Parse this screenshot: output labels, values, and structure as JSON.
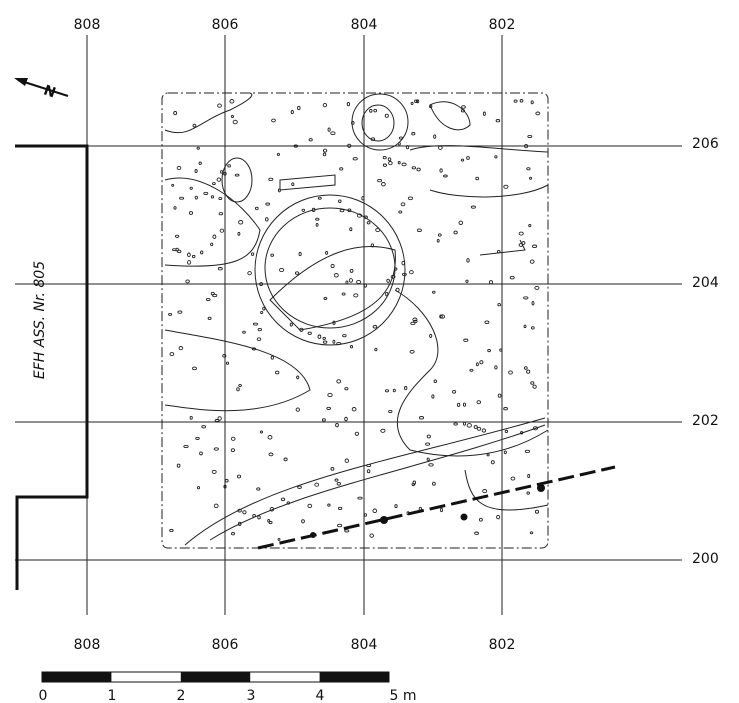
{
  "grid": {
    "top_labels": [
      "808",
      "806",
      "804",
      "802"
    ],
    "bottom_labels": [
      "808",
      "806",
      "804",
      "802"
    ],
    "right_labels": [
      "206",
      "204",
      "202",
      "200"
    ]
  },
  "side_label": "EFH ASS. Nr. 805",
  "north_label": "N",
  "scale": {
    "labels": [
      "0",
      "1",
      "2",
      "3",
      "4",
      "5 m"
    ]
  }
}
